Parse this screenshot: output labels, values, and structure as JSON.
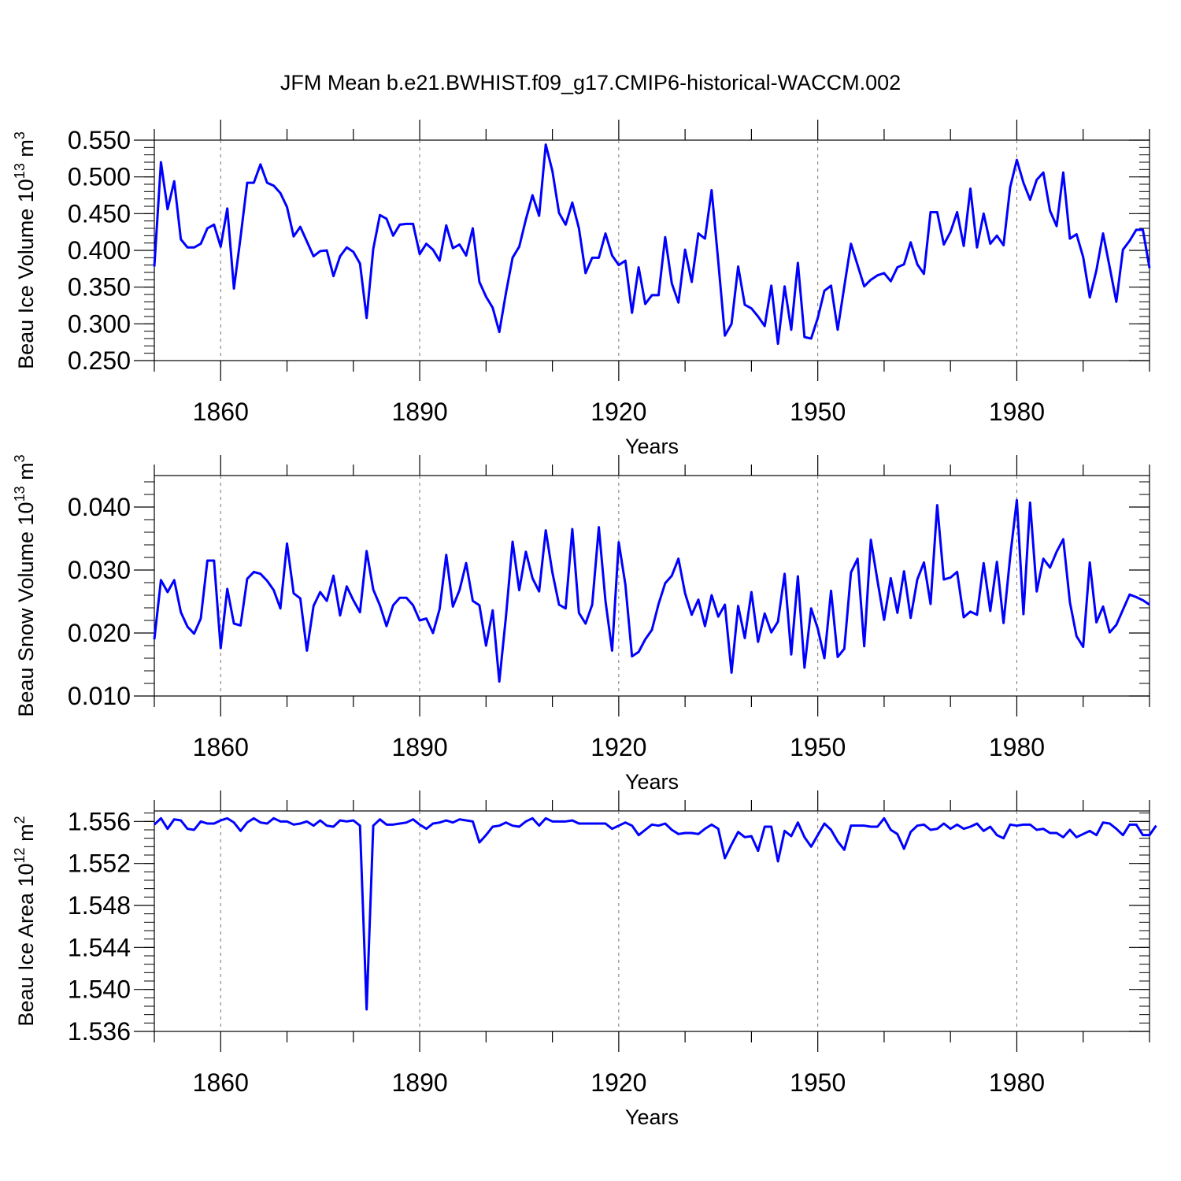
{
  "title": "JFM Mean b.e21.BWHIST.f09_g17.CMIP6-historical-WACCM.002",
  "line_color": "#0000ff",
  "chart_data": [
    {
      "type": "line",
      "title": "JFM Mean b.e21.BWHIST.f09_g17.CMIP6-historical-WACCM.002",
      "ylabel_main": "Beau Ice Volume 10",
      "ylabel_exp": "13",
      "ylabel_unit": " m",
      "ylabel_unit_exp": "3",
      "xlabel": "Years",
      "xlim": [
        1850,
        2000
      ],
      "ylim": [
        0.25,
        0.55
      ],
      "yticks": [
        "0.250",
        "0.300",
        "0.350",
        "0.400",
        "0.450",
        "0.500",
        "0.550"
      ],
      "ytick_values": [
        0.25,
        0.3,
        0.35,
        0.4,
        0.45,
        0.5,
        0.55
      ],
      "xticks": [
        "1860",
        "1890",
        "1920",
        "1950",
        "1980"
      ],
      "xtick_values": [
        1860,
        1890,
        1920,
        1950,
        1980
      ],
      "x_start": 1850,
      "values": [
        0.378,
        0.52,
        0.456,
        0.494,
        0.415,
        0.404,
        0.404,
        0.409,
        0.43,
        0.435,
        0.405,
        0.457,
        0.348,
        0.418,
        0.492,
        0.492,
        0.517,
        0.492,
        0.488,
        0.478,
        0.459,
        0.419,
        0.432,
        0.412,
        0.392,
        0.399,
        0.4,
        0.365,
        0.392,
        0.404,
        0.398,
        0.382,
        0.308,
        0.402,
        0.448,
        0.443,
        0.42,
        0.435,
        0.436,
        0.436,
        0.395,
        0.409,
        0.401,
        0.386,
        0.434,
        0.403,
        0.408,
        0.393,
        0.43,
        0.357,
        0.337,
        0.322,
        0.289,
        0.342,
        0.39,
        0.405,
        0.442,
        0.475,
        0.447,
        0.544,
        0.508,
        0.451,
        0.435,
        0.465,
        0.43,
        0.369,
        0.39,
        0.39,
        0.423,
        0.393,
        0.38,
        0.386,
        0.315,
        0.377,
        0.327,
        0.339,
        0.339,
        0.418,
        0.355,
        0.329,
        0.401,
        0.357,
        0.423,
        0.416,
        0.482,
        0.385,
        0.284,
        0.3,
        0.378,
        0.326,
        0.321,
        0.31,
        0.297,
        0.352,
        0.273,
        0.351,
        0.292,
        0.383,
        0.282,
        0.28,
        0.308,
        0.345,
        0.352,
        0.292,
        0.351,
        0.409,
        0.38,
        0.351,
        0.36,
        0.366,
        0.369,
        0.358,
        0.377,
        0.381,
        0.411,
        0.381,
        0.368,
        0.452,
        0.452,
        0.408,
        0.425,
        0.452,
        0.406,
        0.484,
        0.404,
        0.45,
        0.409,
        0.42,
        0.407,
        0.486,
        0.523,
        0.492,
        0.469,
        0.496,
        0.506,
        0.454,
        0.433,
        0.506,
        0.416,
        0.422,
        0.391,
        0.336,
        0.373,
        0.423,
        0.377,
        0.33,
        0.401,
        0.413,
        0.428,
        0.428,
        0.376
      ]
    },
    {
      "type": "line",
      "ylabel_main": "Beau Snow Volume 10",
      "ylabel_exp": "13",
      "ylabel_unit": " m",
      "ylabel_unit_exp": "3",
      "xlabel": "Years",
      "xlim": [
        1850,
        2000
      ],
      "ylim": [
        0.01,
        0.045
      ],
      "yticks": [
        "0.010",
        "0.020",
        "0.030",
        "0.040"
      ],
      "ytick_values": [
        0.01,
        0.02,
        0.03,
        0.04
      ],
      "xticks": [
        "1860",
        "1890",
        "1920",
        "1950",
        "1980"
      ],
      "xtick_values": [
        1860,
        1890,
        1920,
        1950,
        1980
      ],
      "x_start": 1850,
      "values": [
        0.019,
        0.0284,
        0.0265,
        0.0284,
        0.0233,
        0.021,
        0.0199,
        0.0223,
        0.0315,
        0.0315,
        0.0176,
        0.027,
        0.0215,
        0.0212,
        0.0286,
        0.0297,
        0.0294,
        0.0283,
        0.0268,
        0.0239,
        0.0342,
        0.0263,
        0.0255,
        0.0172,
        0.0243,
        0.0265,
        0.0251,
        0.0291,
        0.0228,
        0.0274,
        0.0252,
        0.0233,
        0.033,
        0.0269,
        0.0244,
        0.0211,
        0.0244,
        0.0256,
        0.0256,
        0.0244,
        0.022,
        0.0223,
        0.02,
        0.0238,
        0.0324,
        0.0242,
        0.0268,
        0.0311,
        0.0251,
        0.0244,
        0.018,
        0.0236,
        0.0123,
        0.0226,
        0.0345,
        0.0268,
        0.0329,
        0.0287,
        0.0266,
        0.0363,
        0.0296,
        0.0245,
        0.0239,
        0.0365,
        0.0232,
        0.0215,
        0.0245,
        0.0368,
        0.0251,
        0.0172,
        0.0344,
        0.0277,
        0.0163,
        0.017,
        0.019,
        0.0205,
        0.0246,
        0.0279,
        0.0291,
        0.0318,
        0.0263,
        0.0229,
        0.0253,
        0.0211,
        0.026,
        0.0226,
        0.0245,
        0.0137,
        0.0243,
        0.0192,
        0.0265,
        0.0186,
        0.0231,
        0.0201,
        0.0218,
        0.0294,
        0.0166,
        0.029,
        0.0145,
        0.0239,
        0.0207,
        0.016,
        0.0267,
        0.0162,
        0.0175,
        0.0296,
        0.0318,
        0.0179,
        0.0348,
        0.0283,
        0.0221,
        0.0287,
        0.0232,
        0.0298,
        0.0224,
        0.0285,
        0.0312,
        0.0246,
        0.0403,
        0.0285,
        0.0288,
        0.0297,
        0.0225,
        0.0234,
        0.0229,
        0.0311,
        0.0235,
        0.0313,
        0.0216,
        0.0321,
        0.0411,
        0.023,
        0.0407,
        0.0266,
        0.0318,
        0.0304,
        0.0329,
        0.0349,
        0.0249,
        0.0195,
        0.0178,
        0.0312,
        0.0217,
        0.0242,
        0.0201,
        0.0213,
        0.0237,
        0.0261,
        0.0257,
        0.0252,
        0.0245
      ]
    },
    {
      "type": "line",
      "ylabel_main": "Beau Ice Area 10",
      "ylabel_exp": "12",
      "ylabel_unit": " m",
      "ylabel_unit_exp": "2",
      "xlabel": "Years",
      "xlim": [
        1850,
        2000
      ],
      "ylim": [
        1.536,
        1.557
      ],
      "yticks": [
        "1.536",
        "1.540",
        "1.544",
        "1.548",
        "1.552",
        "1.556"
      ],
      "ytick_values": [
        1.536,
        1.54,
        1.544,
        1.548,
        1.552,
        1.556
      ],
      "xticks": [
        "1860",
        "1890",
        "1920",
        "1950",
        "1980"
      ],
      "xtick_values": [
        1860,
        1890,
        1920,
        1950,
        1980
      ],
      "x_start": 1850,
      "values": [
        1.5557,
        1.5563,
        1.5553,
        1.5562,
        1.5561,
        1.5553,
        1.5552,
        1.556,
        1.5558,
        1.5558,
        1.5561,
        1.5563,
        1.5559,
        1.5551,
        1.5559,
        1.5563,
        1.5559,
        1.5558,
        1.5563,
        1.556,
        1.556,
        1.5557,
        1.5558,
        1.556,
        1.5556,
        1.5561,
        1.5556,
        1.5555,
        1.5561,
        1.556,
        1.5561,
        1.5556,
        1.5381,
        1.5556,
        1.5562,
        1.5557,
        1.5557,
        1.5558,
        1.5559,
        1.5562,
        1.5557,
        1.5553,
        1.5558,
        1.5559,
        1.5561,
        1.5559,
        1.5562,
        1.5561,
        1.556,
        1.554,
        1.5547,
        1.5555,
        1.5556,
        1.5559,
        1.5556,
        1.5555,
        1.556,
        1.5563,
        1.5556,
        1.5563,
        1.556,
        1.556,
        1.556,
        1.5561,
        1.5558,
        1.5558,
        1.5558,
        1.5558,
        1.5558,
        1.5553,
        1.5556,
        1.5559,
        1.5556,
        1.5547,
        1.5552,
        1.5557,
        1.5556,
        1.5558,
        1.5552,
        1.5548,
        1.5549,
        1.5549,
        1.5548,
        1.5553,
        1.5557,
        1.5553,
        1.5525,
        1.5538,
        1.555,
        1.5545,
        1.5546,
        1.5532,
        1.5555,
        1.5555,
        1.5522,
        1.5551,
        1.5546,
        1.5559,
        1.5545,
        1.5536,
        1.5547,
        1.5558,
        1.5552,
        1.5541,
        1.5533,
        1.5556,
        1.5556,
        1.5556,
        1.5555,
        1.5555,
        1.5563,
        1.5552,
        1.5548,
        1.5534,
        1.555,
        1.5556,
        1.5557,
        1.5552,
        1.5553,
        1.5558,
        1.5553,
        1.5557,
        1.5553,
        1.5555,
        1.5558,
        1.5551,
        1.5555,
        1.5547,
        1.5544,
        1.5557,
        1.5556,
        1.5557,
        1.5557,
        1.5552,
        1.5553,
        1.5549,
        1.5549,
        1.5545,
        1.5552,
        1.5545,
        1.5548,
        1.5551,
        1.5547,
        1.5559,
        1.5558,
        1.5553,
        1.5547,
        1.5557,
        1.5557,
        1.5547,
        1.5547,
        1.5556
      ]
    }
  ]
}
